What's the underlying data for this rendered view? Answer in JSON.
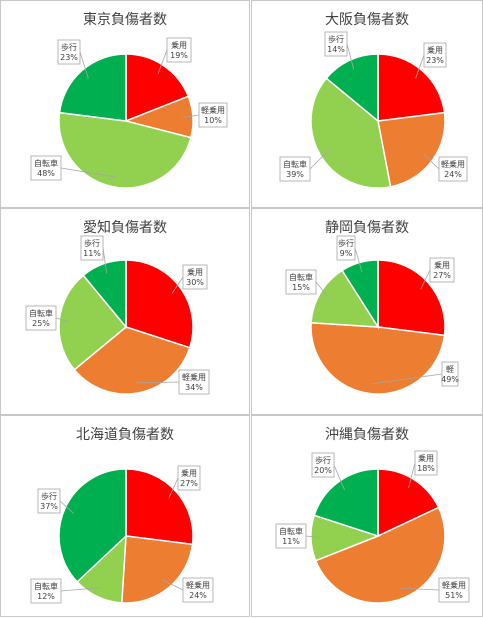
{
  "colors": {
    "乗用": "#ff0000",
    "軽乗用": "#ed7d31",
    "自転車": "#92d050",
    "歩行": "#00b050"
  },
  "chart_data": [
    {
      "type": "pie",
      "title": "東京負傷者数",
      "slices": [
        {
          "label": "乗用",
          "value": 19,
          "pct": "19%"
        },
        {
          "label": "軽乗用",
          "value": 10,
          "pct": "10%"
        },
        {
          "label": "自転車",
          "value": 48,
          "pct": "48%"
        },
        {
          "label": "歩行",
          "value": 23,
          "pct": "23%"
        }
      ]
    },
    {
      "type": "pie",
      "title": "大阪負傷者数",
      "slices": [
        {
          "label": "乗用",
          "value": 23,
          "pct": "23%"
        },
        {
          "label": "軽乗用",
          "value": 24,
          "pct": "24%"
        },
        {
          "label": "自転車",
          "value": 39,
          "pct": "39%"
        },
        {
          "label": "歩行",
          "value": 14,
          "pct": "14%"
        }
      ]
    },
    {
      "type": "pie",
      "title": "愛知負傷者数",
      "slices": [
        {
          "label": "乗用",
          "value": 30,
          "pct": "30%"
        },
        {
          "label": "軽乗用",
          "value": 34,
          "pct": "34%"
        },
        {
          "label": "自転車",
          "value": 25,
          "pct": "25%"
        },
        {
          "label": "歩行",
          "value": 11,
          "pct": "11%"
        }
      ]
    },
    {
      "type": "pie",
      "title": "静岡負傷者数",
      "slices": [
        {
          "label": "乗用",
          "value": 27,
          "pct": "27%"
        },
        {
          "label": "軽",
          "value": 49,
          "pct": "49%"
        },
        {
          "label": "自転車",
          "value": 15,
          "pct": "15%"
        },
        {
          "label": "歩行",
          "value": 9,
          "pct": "9%"
        }
      ]
    },
    {
      "type": "pie",
      "title": "北海道負傷者数",
      "slices": [
        {
          "label": "乗用",
          "value": 27,
          "pct": "27%"
        },
        {
          "label": "軽乗用",
          "value": 24,
          "pct": "24%"
        },
        {
          "label": "自転車",
          "value": 12,
          "pct": "12%"
        },
        {
          "label": "歩行",
          "value": 37,
          "pct": "37%"
        }
      ]
    },
    {
      "type": "pie",
      "title": "沖縄負傷者数",
      "slices": [
        {
          "label": "乗用",
          "value": 18,
          "pct": "18%"
        },
        {
          "label": "軽乗用",
          "value": 51,
          "pct": "51%"
        },
        {
          "label": "自転車",
          "value": 11,
          "pct": "11%"
        },
        {
          "label": "歩行",
          "value": 20,
          "pct": "20%"
        }
      ]
    }
  ]
}
